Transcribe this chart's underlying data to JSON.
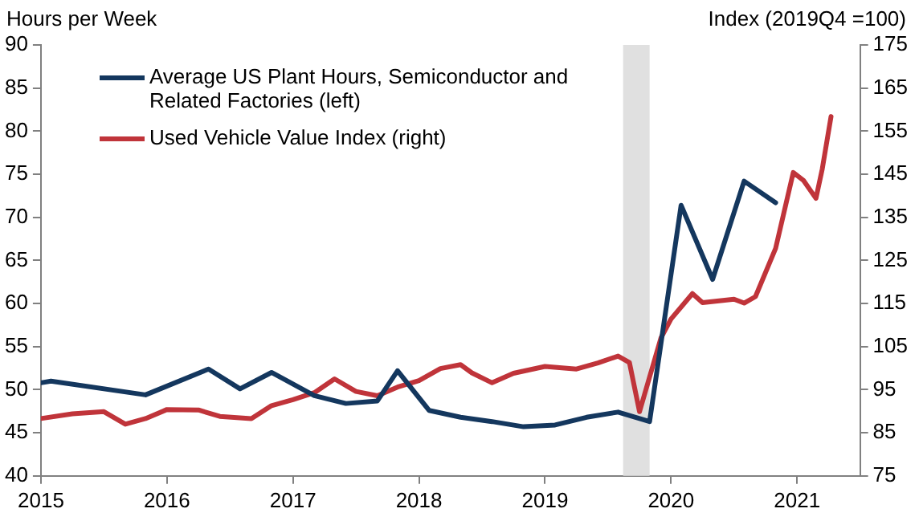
{
  "chart_data": {
    "type": "line",
    "ylabel": "Hours per Week",
    "y2label": "Index (2019Q4 =100)",
    "xlim": [
      2015,
      2021.5
    ],
    "xticks": [
      2015,
      2016,
      2017,
      2018,
      2019,
      2020,
      2021
    ],
    "ylim": [
      40,
      90
    ],
    "yticks": [
      40,
      45,
      50,
      55,
      60,
      65,
      70,
      75,
      80,
      85,
      90
    ],
    "y2lim": [
      75,
      175
    ],
    "y2ticks": [
      75,
      85,
      95,
      105,
      115,
      125,
      135,
      145,
      155,
      165,
      175
    ],
    "grid": false,
    "legend": "top left",
    "marker": "none",
    "line_style": "solid",
    "bands": [
      {
        "axis": "x",
        "from": 2019.62,
        "to": 2019.83,
        "color": "#e0e0e0"
      }
    ],
    "series": [
      {
        "name": "Average US Plant Hours, Semiconductor and Related Factories (left)",
        "color": "#14375e",
        "axis": "y",
        "x": [
          2015,
          2015.08,
          2015.83,
          2016.33,
          2016.58,
          2016.83,
          2017.17,
          2017.42,
          2017.67,
          2017.83,
          2018.08,
          2018.33,
          2018.58,
          2018.83,
          2019.08,
          2019.33,
          2019.58,
          2019.83,
          2020.08,
          2020.33,
          2020.58,
          2020.83
        ],
        "values": [
          50.8,
          51.0,
          49.4,
          52.4,
          50.1,
          52.0,
          49.3,
          48.4,
          48.7,
          52.2,
          47.6,
          46.8,
          46.3,
          45.7,
          45.9,
          46.8,
          47.4,
          46.3,
          71.4,
          62.8,
          74.2,
          71.7
        ]
      },
      {
        "name": "Used Vehicle Value Index (right)",
        "color": "#c0343a",
        "axis": "y2",
        "x": [
          2015,
          2015.25,
          2015.5,
          2015.67,
          2015.83,
          2016,
          2016.25,
          2016.42,
          2016.67,
          2016.83,
          2017,
          2017.17,
          2017.33,
          2017.5,
          2017.67,
          2017.83,
          2018,
          2018.17,
          2018.33,
          2018.42,
          2018.58,
          2018.75,
          2019,
          2019.25,
          2019.42,
          2019.58,
          2019.67,
          2019.75,
          2019.92,
          2020,
          2020.17,
          2020.25,
          2020.5,
          2020.58,
          2020.67,
          2020.83,
          2020.97,
          2021.05,
          2021.15,
          2021.2,
          2021.27
        ],
        "values": [
          88.3,
          89.4,
          89.9,
          87.0,
          88.3,
          90.4,
          90.3,
          88.8,
          88.3,
          91.3,
          92.7,
          94.3,
          97.5,
          94.6,
          93.6,
          95.6,
          97.1,
          99.9,
          100.8,
          98.9,
          96.6,
          98.8,
          100.4,
          99.8,
          101.2,
          102.8,
          101.3,
          89.9,
          107.0,
          111.4,
          117.3,
          115.2,
          116.0,
          115.1,
          116.6,
          127.8,
          145.4,
          143.6,
          139.4,
          146.2,
          158.4
        ]
      }
    ]
  }
}
